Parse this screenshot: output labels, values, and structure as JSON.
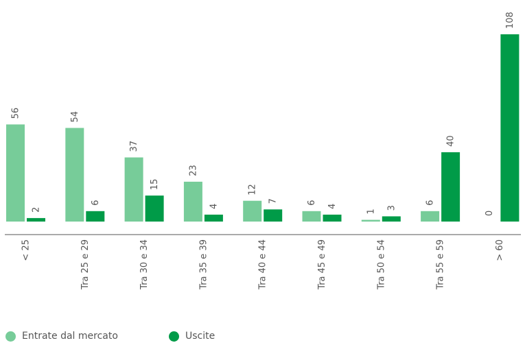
{
  "chart_data": {
    "type": "bar",
    "categories": [
      "< 25",
      "Tra 25 e 29",
      "Tra 30 e 34",
      "Tra 35 e 39",
      "Tra 40 e 44",
      "Tra 45 e 49",
      "Tra 50 e 54",
      "Tra 55 e 59",
      "> 60"
    ],
    "series": [
      {
        "name": "Entrate dal mercato",
        "color": "#77cc99",
        "values": [
          56,
          54,
          37,
          23,
          12,
          6,
          1,
          6,
          0
        ]
      },
      {
        "name": "Uscite",
        "color": "#009b48",
        "values": [
          2,
          6,
          15,
          4,
          7,
          4,
          3,
          40,
          108
        ]
      }
    ],
    "title": "",
    "xlabel": "",
    "ylabel": "",
    "ylim": [
      0,
      108
    ],
    "grid": false,
    "legend_position": "bottom-left",
    "axis_color": "#555555"
  }
}
